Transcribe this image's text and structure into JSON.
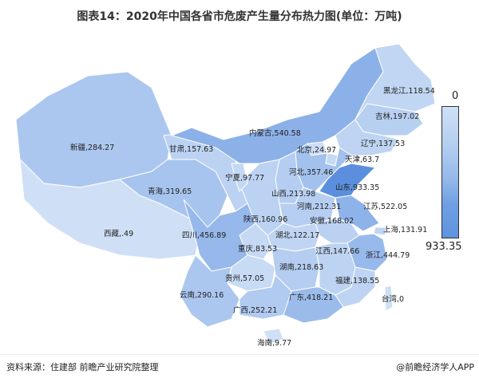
{
  "title": "图表14：2020年中国各省市危废产生量分布热力图(单位：万吨)",
  "legend": {
    "min": "0",
    "max": "933.35",
    "color_min": "#cfe0f6",
    "color_max": "#5b8fde"
  },
  "source": "资料来源：住建部 前瞻产业研究院整理",
  "brand": "@前瞻经济学人APP",
  "regions": [
    {
      "name": "新疆",
      "value": 284.27,
      "label": "新疆,284.27"
    },
    {
      "name": "西藏",
      "value": 0.49,
      "label": "西藏,.49"
    },
    {
      "name": "青海",
      "value": 319.65,
      "label": "青海,319.65"
    },
    {
      "name": "甘肃",
      "value": 157.63,
      "label": "甘肃,157.63"
    },
    {
      "name": "内蒙古",
      "value": 540.58,
      "label": "内蒙古,540.58"
    },
    {
      "name": "黑龙江",
      "value": 118.54,
      "label": "黑龙江,118.54"
    },
    {
      "name": "吉林",
      "value": 197.02,
      "label": "吉林,197.02"
    },
    {
      "name": "辽宁",
      "value": 137.53,
      "label": "辽宁,137.53"
    },
    {
      "name": "北京",
      "value": 24.97,
      "label": "北京,24.97"
    },
    {
      "name": "天津",
      "value": 63.7,
      "label": "天津,63.7"
    },
    {
      "name": "河北",
      "value": 357.46,
      "label": "河北,357.46"
    },
    {
      "name": "山西",
      "value": 213.98,
      "label": "山西,213.98"
    },
    {
      "name": "山东",
      "value": 933.35,
      "label": "山东,933.35"
    },
    {
      "name": "陕西",
      "value": 160.96,
      "label": "陕西,160.96"
    },
    {
      "name": "宁夏",
      "value": 97.77,
      "label": "宁夏,97.77"
    },
    {
      "name": "河南",
      "value": 212.31,
      "label": "河南,212.31"
    },
    {
      "name": "江苏",
      "value": 522.05,
      "label": "江苏,522.05"
    },
    {
      "name": "安徽",
      "value": 168.02,
      "label": "安徽,168.02"
    },
    {
      "name": "上海",
      "value": 131.91,
      "label": "上海,131.91"
    },
    {
      "name": "浙江",
      "value": 444.79,
      "label": "浙江,444.79"
    },
    {
      "name": "湖北",
      "value": 122.17,
      "label": "湖北,122.17"
    },
    {
      "name": "重庆",
      "value": 83.53,
      "label": "重庆,83.53"
    },
    {
      "name": "四川",
      "value": 456.89,
      "label": "四川,456.89"
    },
    {
      "name": "贵州",
      "value": 57.05,
      "label": "贵州,57.05"
    },
    {
      "name": "云南",
      "value": 290.16,
      "label": "云南,290.16"
    },
    {
      "name": "湖南",
      "value": 218.63,
      "label": "湖南,218.63"
    },
    {
      "name": "江西",
      "value": 147.66,
      "label": "江西,147.66"
    },
    {
      "name": "福建",
      "value": 138.55,
      "label": "福建,138.55"
    },
    {
      "name": "广东",
      "value": 418.21,
      "label": "广东,418.21"
    },
    {
      "name": "广西",
      "value": 252.21,
      "label": "广西,252.21"
    },
    {
      "name": "海南",
      "value": 9.77,
      "label": "海南,9.77"
    },
    {
      "name": "台湾",
      "value": 0,
      "label": "台湾,0"
    }
  ]
}
